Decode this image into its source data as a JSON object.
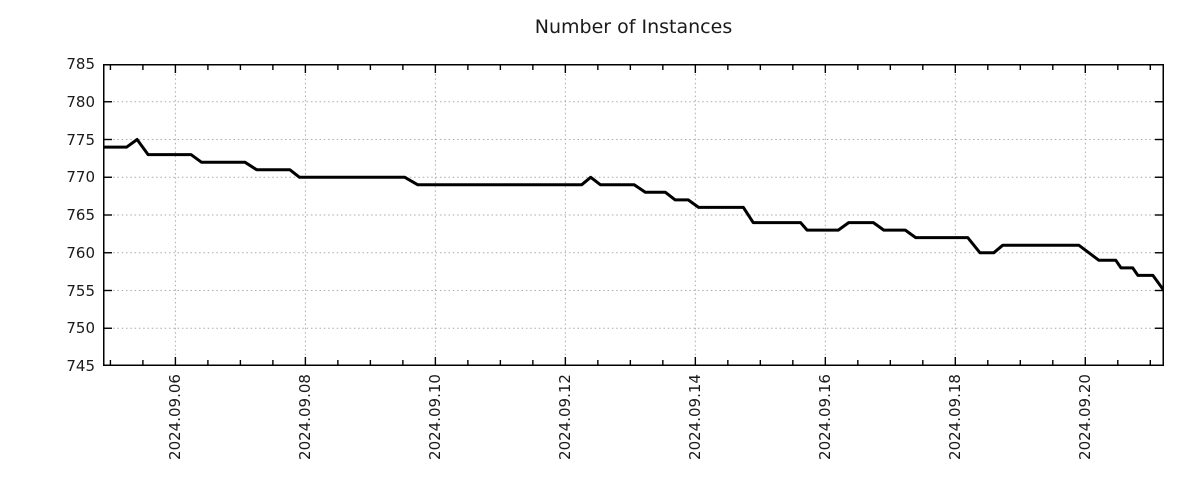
{
  "title": "Number of Instances",
  "colors": {
    "background": "#ffffff",
    "line": "#000000",
    "grid": "#ababab",
    "axis": "#000000",
    "text": "#1a1a1a"
  },
  "chart_data": {
    "type": "line",
    "title": "Number of Instances",
    "xlabel": "",
    "ylabel": "",
    "grid": true,
    "legend": false,
    "x_axis": {
      "unit": "date (day of September 2024, fractional)",
      "min": 4.886,
      "max": 21.211,
      "major_ticks": [
        {
          "day": 6,
          "label": "2024.09.06"
        },
        {
          "day": 8,
          "label": "2024.09.08"
        },
        {
          "day": 10,
          "label": "2024.09.10"
        },
        {
          "day": 12,
          "label": "2024.09.12"
        },
        {
          "day": 14,
          "label": "2024.09.14"
        },
        {
          "day": 16,
          "label": "2024.09.16"
        },
        {
          "day": 18,
          "label": "2024.09.18"
        },
        {
          "day": 20,
          "label": "2024.09.20"
        }
      ],
      "minor_tick_step": 0.5
    },
    "y_axis": {
      "min": 745,
      "max": 785,
      "tick_step": 5,
      "tick_labels": [
        "745",
        "750",
        "755",
        "760",
        "765",
        "770",
        "775",
        "780",
        "785"
      ]
    },
    "series": [
      {
        "name": "instances",
        "color": "#000000",
        "points": [
          [
            4.89,
            774
          ],
          [
            5.25,
            774
          ],
          [
            5.41,
            775
          ],
          [
            5.58,
            773
          ],
          [
            6.24,
            773
          ],
          [
            6.4,
            772
          ],
          [
            7.07,
            772
          ],
          [
            7.25,
            771
          ],
          [
            7.76,
            771
          ],
          [
            7.91,
            770
          ],
          [
            9.53,
            770
          ],
          [
            9.73,
            769
          ],
          [
            12.25,
            769
          ],
          [
            12.39,
            770
          ],
          [
            12.54,
            769
          ],
          [
            13.06,
            769
          ],
          [
            13.23,
            768
          ],
          [
            13.54,
            768
          ],
          [
            13.69,
            767
          ],
          [
            13.89,
            767
          ],
          [
            14.05,
            766
          ],
          [
            14.74,
            766
          ],
          [
            14.89,
            764
          ],
          [
            15.62,
            764
          ],
          [
            15.72,
            763
          ],
          [
            16.2,
            763
          ],
          [
            16.36,
            764
          ],
          [
            16.74,
            764
          ],
          [
            16.9,
            763
          ],
          [
            17.23,
            763
          ],
          [
            17.39,
            762
          ],
          [
            18.19,
            762
          ],
          [
            18.38,
            760
          ],
          [
            18.59,
            760
          ],
          [
            18.73,
            761
          ],
          [
            19.9,
            761
          ],
          [
            20.21,
            759
          ],
          [
            20.47,
            759
          ],
          [
            20.55,
            758
          ],
          [
            20.73,
            758
          ],
          [
            20.81,
            757
          ],
          [
            21.04,
            757
          ],
          [
            21.21,
            755
          ]
        ]
      }
    ]
  }
}
